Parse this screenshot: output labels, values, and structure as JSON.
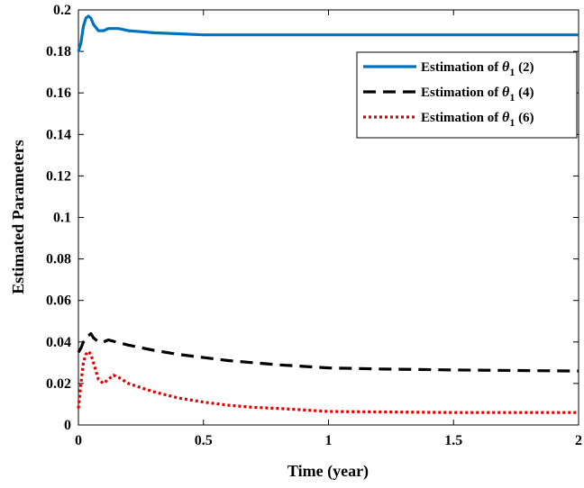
{
  "chart_data": {
    "type": "line",
    "xlabel": "Time (year)",
    "ylabel": "Estimated Parameters",
    "xlim": [
      0,
      2
    ],
    "ylim": [
      0,
      0.2
    ],
    "x_ticks": [
      "0",
      "0.5",
      "1",
      "1.5",
      "2"
    ],
    "y_ticks": [
      "0",
      "0.02",
      "0.04",
      "0.06",
      "0.08",
      "0.1",
      "0.12",
      "0.14",
      "0.16",
      "0.18",
      "0.2"
    ],
    "grid": false,
    "legend_position": "top-right",
    "series": [
      {
        "name_prefix": "Estimation of ",
        "symbol": "θ",
        "subscript": "1",
        "name_suffix": " (2)",
        "color": "#0072BD",
        "style": "solid",
        "x": [
          0,
          0.01,
          0.02,
          0.03,
          0.04,
          0.05,
          0.06,
          0.08,
          0.1,
          0.12,
          0.14,
          0.16,
          0.2,
          0.25,
          0.3,
          0.4,
          0.5,
          0.6,
          0.8,
          1.0,
          1.5,
          2.0
        ],
        "y": [
          0.18,
          0.184,
          0.192,
          0.196,
          0.197,
          0.196,
          0.193,
          0.19,
          0.19,
          0.191,
          0.191,
          0.191,
          0.19,
          0.1895,
          0.189,
          0.1885,
          0.188,
          0.188,
          0.188,
          0.188,
          0.188,
          0.188
        ]
      },
      {
        "name_prefix": "Estimation of ",
        "symbol": "θ",
        "subscript": "1",
        "name_suffix": " (4)",
        "color": "#000000",
        "style": "dashed",
        "x": [
          0,
          0.01,
          0.02,
          0.03,
          0.04,
          0.05,
          0.06,
          0.08,
          0.1,
          0.12,
          0.15,
          0.2,
          0.3,
          0.4,
          0.5,
          0.6,
          0.7,
          0.8,
          1.0,
          1.2,
          1.5,
          2.0
        ],
        "y": [
          0.035,
          0.037,
          0.04,
          0.042,
          0.043,
          0.044,
          0.042,
          0.04,
          0.04,
          0.041,
          0.04,
          0.0385,
          0.036,
          0.034,
          0.0325,
          0.031,
          0.03,
          0.029,
          0.0275,
          0.027,
          0.0265,
          0.026
        ]
      },
      {
        "name_prefix": "Estimation of ",
        "symbol": "θ",
        "subscript": "1",
        "name_suffix": " (6)",
        "color": "#E00000",
        "style": "dotted",
        "x": [
          0,
          0.01,
          0.02,
          0.03,
          0.04,
          0.05,
          0.06,
          0.08,
          0.1,
          0.12,
          0.14,
          0.16,
          0.2,
          0.3,
          0.4,
          0.5,
          0.6,
          0.7,
          0.8,
          1.0,
          1.5,
          2.0
        ],
        "y": [
          0.008,
          0.02,
          0.03,
          0.034,
          0.0355,
          0.034,
          0.03,
          0.022,
          0.02,
          0.022,
          0.024,
          0.023,
          0.02,
          0.016,
          0.013,
          0.011,
          0.0095,
          0.0085,
          0.008,
          0.0065,
          0.006,
          0.006
        ]
      }
    ]
  }
}
